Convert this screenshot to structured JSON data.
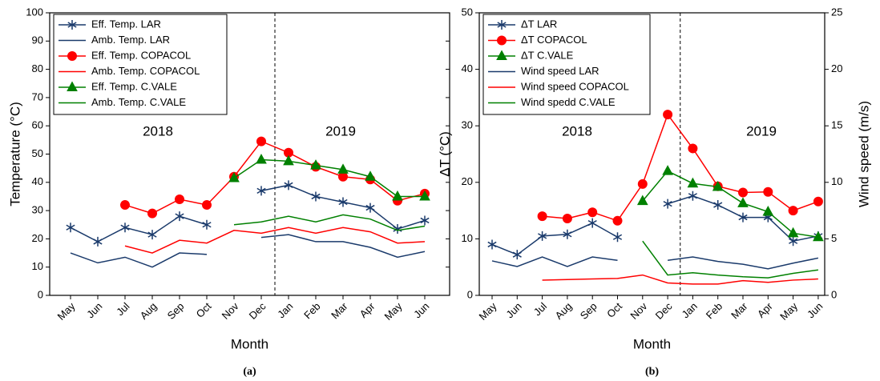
{
  "chart_data": [
    {
      "type": "line",
      "subtitle": "(a)",
      "xlabel": "Month",
      "ylabel": "Temperature (°C)",
      "categories": [
        "May",
        "Jun",
        "Jul",
        "Aug",
        "Sep",
        "Oct",
        "Nov",
        "Dec",
        "Jan",
        "Feb",
        "Mar",
        "Apr",
        "May",
        "Jun"
      ],
      "ylim": [
        0,
        100
      ],
      "yticks": [
        0,
        10,
        20,
        30,
        40,
        50,
        60,
        70,
        80,
        90,
        100
      ],
      "annotations": [
        "2018",
        "2019"
      ],
      "legend": "upper left",
      "series": [
        {
          "name": "Eff. Temp.  LAR",
          "color": "#1a3a6b",
          "marker": "asterisk",
          "values": [
            24,
            19,
            24,
            21.5,
            28,
            25,
            null,
            37,
            39,
            35,
            33,
            31,
            23.5,
            26.5
          ]
        },
        {
          "name": "Amb. Temp. LAR",
          "color": "#1a3a6b",
          "values": [
            15,
            11.5,
            13.5,
            10,
            15,
            14.5,
            null,
            20.5,
            21.5,
            19,
            19,
            17,
            13.5,
            15.5
          ]
        },
        {
          "name": "Eff. Temp. COPACOL",
          "color": "#ff0000",
          "marker": "circle",
          "values": [
            null,
            null,
            32,
            29,
            34,
            32,
            42,
            54.5,
            50.5,
            45.5,
            42,
            41,
            33.5,
            36
          ]
        },
        {
          "name": "Amb. Temp. COPACOL",
          "color": "#ff0000",
          "values": [
            null,
            null,
            17.5,
            15,
            19.5,
            18.5,
            23,
            22,
            24,
            22,
            24,
            22.5,
            18.5,
            19
          ]
        },
        {
          "name": "Eff. Temp. C.VALE",
          "color": "#008000",
          "marker": "triangle",
          "values": [
            null,
            null,
            null,
            null,
            null,
            null,
            41.5,
            48,
            47.5,
            46,
            44.5,
            42,
            35,
            35
          ]
        },
        {
          "name": "Amb. Temp. C.VALE",
          "color": "#008000",
          "values": [
            null,
            null,
            null,
            null,
            null,
            null,
            25,
            26,
            28,
            26,
            28.5,
            27,
            23,
            24.5
          ]
        }
      ]
    },
    {
      "type": "line",
      "subtitle": "(b)",
      "xlabel": "Month",
      "ylabel": "ΔT (°C)",
      "y2label": "Wind speed (m/s)",
      "categories": [
        "May",
        "Jun",
        "Jul",
        "Aug",
        "Sep",
        "Oct",
        "Nov",
        "Dec",
        "Jan",
        "Feb",
        "Mar",
        "Apr",
        "May",
        "Jun"
      ],
      "ylim": [
        0,
        50
      ],
      "yticks": [
        0,
        10,
        20,
        30,
        40,
        50
      ],
      "y2lim": [
        0,
        25
      ],
      "y2ticks": [
        0,
        5,
        10,
        15,
        20,
        25
      ],
      "annotations": [
        "2018",
        "2019"
      ],
      "legend": "upper left",
      "series": [
        {
          "name": "ΔT LAR",
          "color": "#1a3a6b",
          "marker": "asterisk",
          "values": [
            9,
            7.2,
            10.5,
            10.8,
            12.8,
            10.3,
            null,
            16.2,
            17.6,
            16,
            13.8,
            13.8,
            9.6,
            10.5
          ]
        },
        {
          "name": "ΔT COPACOL",
          "color": "#ff0000",
          "marker": "circle",
          "values": [
            null,
            null,
            14,
            13.6,
            14.7,
            13.2,
            19.7,
            32,
            26,
            19.3,
            18.2,
            18.3,
            15,
            16.6
          ]
        },
        {
          "name": "ΔT C.VALE",
          "color": "#008000",
          "marker": "triangle",
          "values": [
            null,
            null,
            null,
            null,
            null,
            null,
            16.7,
            22,
            19.8,
            19.2,
            16.3,
            14.8,
            11,
            10.3
          ]
        },
        {
          "name": "Wind speed LAR",
          "color": "#1a3a6b",
          "axis": "y2",
          "values": [
            3.05,
            2.55,
            3.4,
            2.55,
            3.4,
            3.1,
            null,
            3.1,
            3.4,
            3.0,
            2.75,
            2.35,
            2.85,
            3.3
          ]
        },
        {
          "name": "Wind speed COPACOL",
          "color": "#ff0000",
          "axis": "y2",
          "values": [
            null,
            null,
            1.35,
            1.4,
            1.45,
            1.5,
            1.8,
            1.1,
            1.0,
            1.0,
            1.3,
            1.15,
            1.35,
            1.45
          ]
        },
        {
          "name": "Wind spedd C.VALE",
          "color": "#008000",
          "axis": "y2",
          "values": [
            null,
            null,
            null,
            null,
            null,
            null,
            4.8,
            1.8,
            2.0,
            1.8,
            1.65,
            1.55,
            1.95,
            2.25
          ]
        }
      ]
    }
  ]
}
